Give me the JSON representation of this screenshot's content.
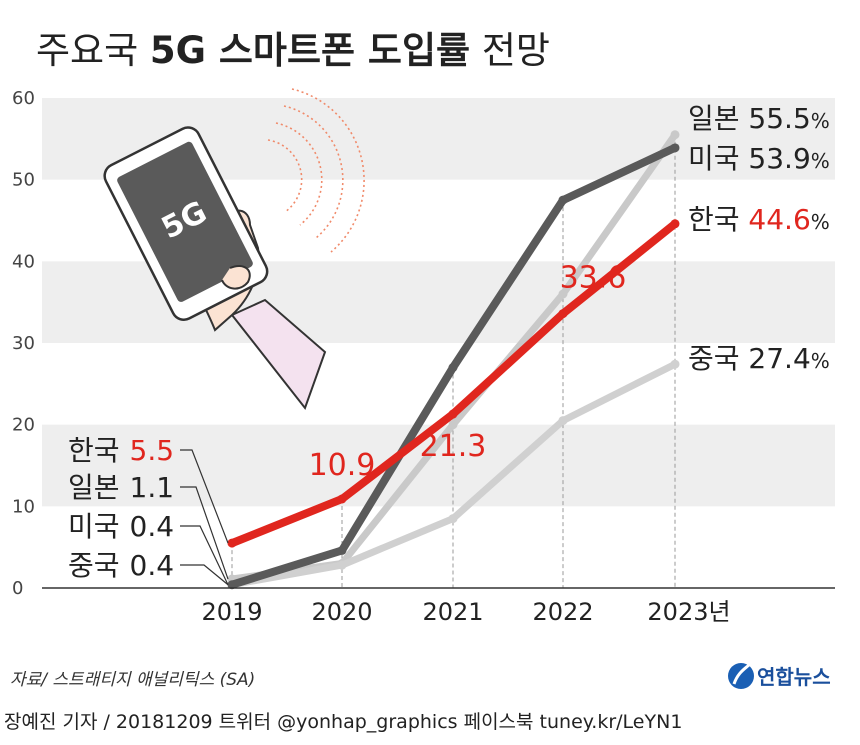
{
  "title": {
    "part1": "주요국 ",
    "part2": "5G 스마트폰 도입률",
    "part3": " 전망"
  },
  "phone_label": "5G",
  "source": "자료/ 스트래티지 애널리틱스 (SA)",
  "logo_text": "연합뉴스",
  "footer": "장예진 기자 / 20181209 트위터 @yonhap_graphics  페이스북 tuney.kr/LeYN1",
  "colors": {
    "korea": "#e0261e",
    "japan": "#c9c9c9",
    "usa": "#5a5a5a",
    "china": "#d0d0d0",
    "band": "#eeeeee",
    "text": "#222222"
  },
  "chart_data": {
    "type": "line",
    "title": "주요국 5G 스마트폰 도입률 전망",
    "x": [
      "2019",
      "2020",
      "2021",
      "2022",
      "2023년"
    ],
    "ylim": [
      0,
      60
    ],
    "yticks": [
      "0",
      "10",
      "20",
      "30",
      "40",
      "50",
      "60"
    ],
    "series": [
      {
        "name": "일본",
        "values": [
          1.1,
          3.0,
          20.0,
          36.0,
          55.5
        ]
      },
      {
        "name": "중국",
        "values": [
          0.4,
          2.8,
          8.5,
          20.5,
          27.4
        ]
      },
      {
        "name": "미국",
        "values": [
          0.4,
          4.6,
          27.0,
          47.5,
          53.9
        ]
      },
      {
        "name": "한국",
        "values": [
          5.5,
          10.9,
          21.3,
          33.6,
          44.6
        ]
      }
    ],
    "data_labels_korea": [
      "10.9",
      "21.3",
      "33.6"
    ],
    "end_labels": [
      {
        "name": "일본",
        "value": "55.5",
        "unit": "%"
      },
      {
        "name": "미국",
        "value": "53.9",
        "unit": "%"
      },
      {
        "name": "한국",
        "value": "44.6",
        "unit": "%"
      },
      {
        "name": "중국",
        "value": "27.4",
        "unit": "%"
      }
    ],
    "start_labels": [
      {
        "name": "한국",
        "value": "5.5"
      },
      {
        "name": "일본",
        "value": "1.1"
      },
      {
        "name": "미국",
        "value": "0.4"
      },
      {
        "name": "중국",
        "value": "0.4"
      }
    ]
  }
}
